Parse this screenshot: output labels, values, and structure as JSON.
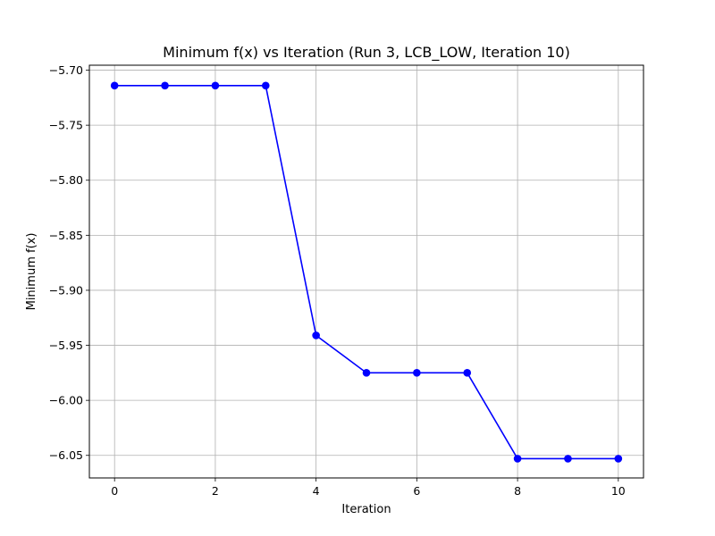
{
  "chart_data": {
    "type": "line",
    "title": "Minimum f(x) vs Iteration (Run 3, LCB_LOW, Iteration 10)",
    "xlabel": "Iteration",
    "ylabel": "Minimum f(x)",
    "xlim": [
      -0.5,
      10.5
    ],
    "ylim": [
      -6.0705,
      -5.6955
    ],
    "xticks": [
      0,
      2,
      4,
      6,
      8,
      10
    ],
    "xtick_labels": [
      "0",
      "2",
      "4",
      "6",
      "8",
      "10"
    ],
    "yticks": [
      -5.7,
      -5.75,
      -5.8,
      -5.85,
      -5.9,
      -5.95,
      -6.0,
      -6.05
    ],
    "ytick_labels": [
      "−5.70",
      "−5.75",
      "−5.80",
      "−5.85",
      "−5.90",
      "−5.95",
      "−6.00",
      "−6.05"
    ],
    "grid": true,
    "legend": false,
    "series": [
      {
        "color": "#0000ff",
        "marker": "circle",
        "x": [
          0,
          1,
          2,
          3,
          4,
          5,
          6,
          7,
          8,
          9,
          10
        ],
        "y": [
          -5.714,
          -5.714,
          -5.714,
          -5.714,
          -5.941,
          -5.975,
          -5.975,
          -5.975,
          -6.053,
          -6.053,
          -6.053
        ]
      }
    ]
  }
}
